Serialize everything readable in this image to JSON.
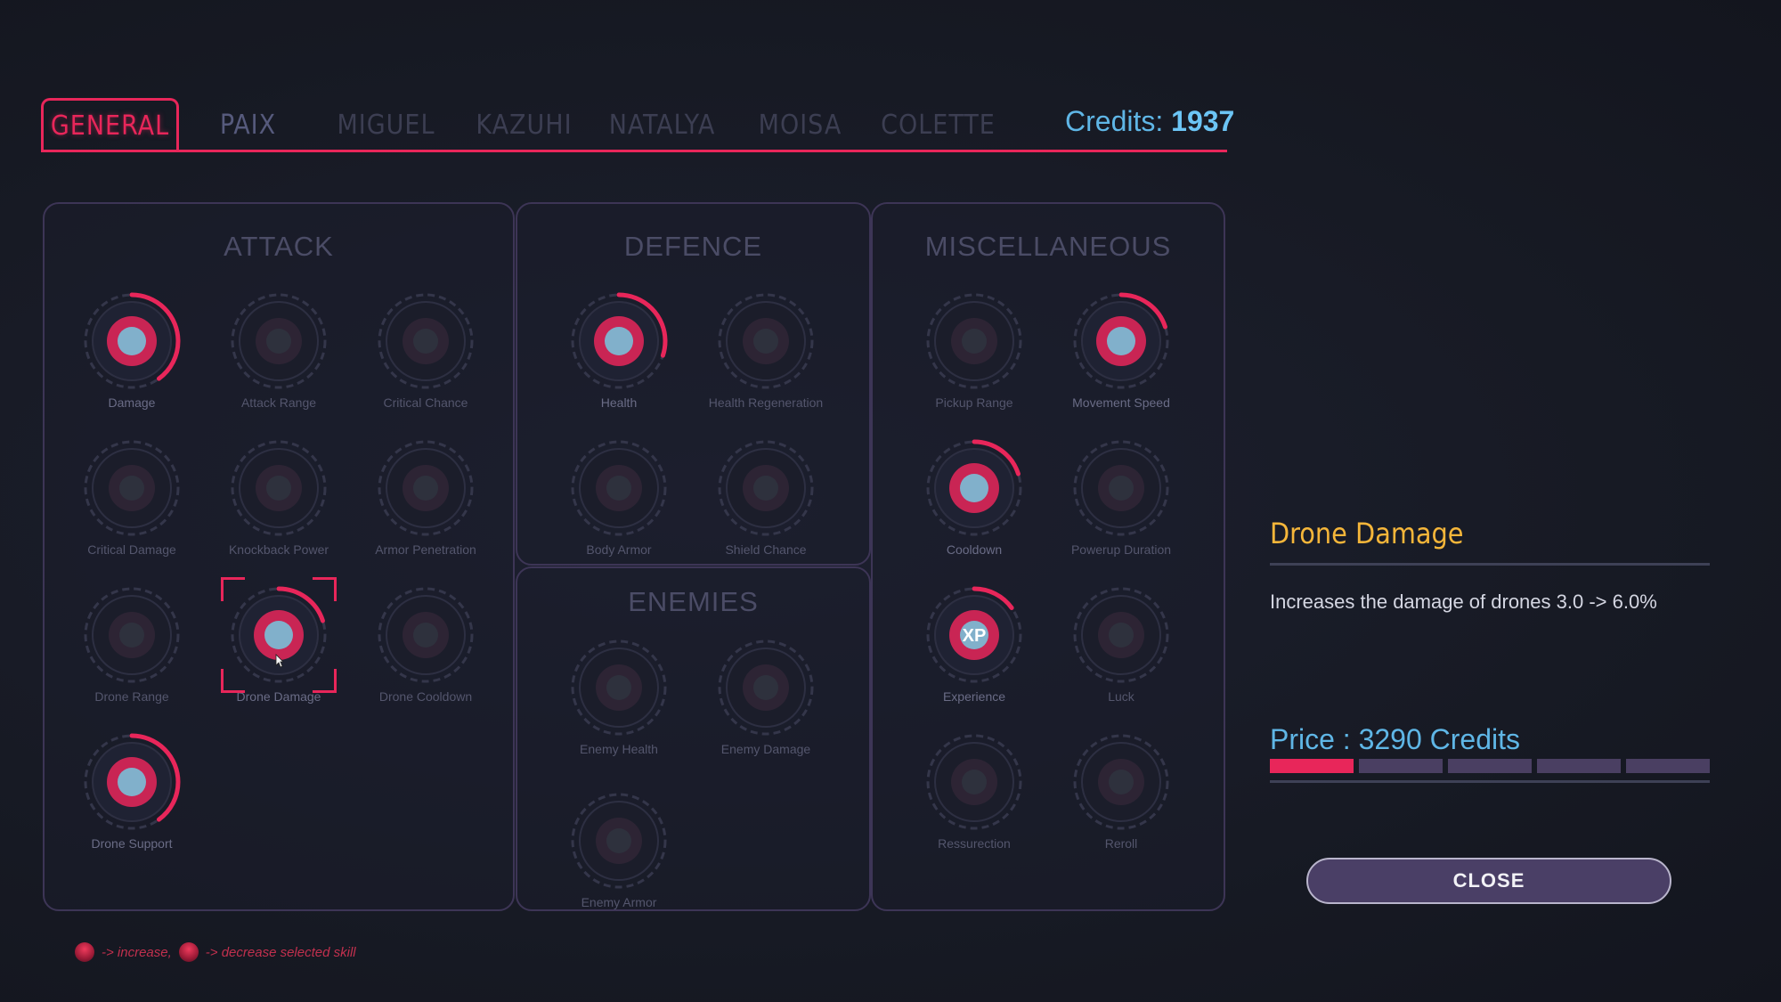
{
  "colors": {
    "accent": "#e8265a",
    "credits": "#5fb6e6",
    "title": "#f5b63a",
    "owned_ring": "#e8265a"
  },
  "tabs": [
    {
      "label": "GENERAL",
      "active": true
    },
    {
      "label": "PAIX"
    },
    {
      "label": "MIGUEL"
    },
    {
      "label": "KAZUHI"
    },
    {
      "label": "NATALYA"
    },
    {
      "label": "MOISA"
    },
    {
      "label": "COLETTE"
    }
  ],
  "credits": {
    "label": "Credits:",
    "amount": "1937"
  },
  "panels": {
    "attack": {
      "title": "ATTACK",
      "skills": [
        {
          "label": "Damage",
          "icon": "skull-dynamite-icon",
          "owned": true,
          "progress": 0.4
        },
        {
          "label": "Attack Range",
          "icon": "scope-icon"
        },
        {
          "label": "Critical Chance",
          "icon": "skull-target-icon"
        },
        {
          "label": "Critical Damage",
          "icon": "skull-knife-icon"
        },
        {
          "label": "Knockback Power",
          "icon": "fist-icon"
        },
        {
          "label": "Armor Penetration",
          "icon": "shield-pierce-icon"
        },
        {
          "label": "Drone Range",
          "icon": "drone-radar-icon"
        },
        {
          "label": "Drone Damage",
          "icon": "drone-blast-icon",
          "owned": true,
          "selected": true,
          "progress": 0.2
        },
        {
          "label": "Drone Cooldown",
          "icon": "drone-timer-icon"
        },
        {
          "label": "Drone Support",
          "icon": "drone-eye-icon",
          "owned": true,
          "progress": 0.4
        }
      ]
    },
    "defence": {
      "title": "DEFENCE",
      "skills": [
        {
          "label": "Health",
          "icon": "heart-cross-icon",
          "owned": true,
          "progress": 0.3
        },
        {
          "label": "Health Regeneration",
          "icon": "heart-apple-icon"
        },
        {
          "label": "Body Armor",
          "icon": "body-armor-icon"
        },
        {
          "label": "Shield Chance",
          "icon": "shield-dice-icon"
        }
      ]
    },
    "enemies": {
      "title": "ENEMIES",
      "skills": [
        {
          "label": "Enemy Health",
          "icon": "demon-heart-icon"
        },
        {
          "label": "Enemy Damage",
          "icon": "claw-icon"
        },
        {
          "label": "Enemy Armor",
          "icon": "armored-demon-icon"
        }
      ]
    },
    "misc": {
      "title": "MISCELLANEOUS",
      "skills": [
        {
          "label": "Pickup Range",
          "icon": "magnet-icon"
        },
        {
          "label": "Movement Speed",
          "icon": "runner-icon",
          "owned": true,
          "progress": 0.2
        },
        {
          "label": "Cooldown",
          "icon": "stopwatch-icon",
          "owned": true,
          "progress": 0.2
        },
        {
          "label": "Powerup Duration",
          "icon": "fist-lightning-icon"
        },
        {
          "label": "Experience",
          "icon": "xp-triangle-icon",
          "owned": true,
          "progress": 0.15,
          "badge": "XP"
        },
        {
          "label": "Luck",
          "icon": "clover-cards-icon"
        },
        {
          "label": "Ressurection",
          "icon": "grave-skeleton-icon"
        },
        {
          "label": "Reroll",
          "icon": "reroll-icon"
        }
      ]
    }
  },
  "detail": {
    "title": "Drone Damage",
    "description": "Increases the damage of drones  3.0 -> 6.0%",
    "price": "Price : 3290 Credits",
    "levels_filled": 1,
    "levels_total": 5,
    "close_label": "CLOSE"
  },
  "hint": {
    "increase": "-> increase,",
    "decrease": "-> decrease selected skill"
  }
}
